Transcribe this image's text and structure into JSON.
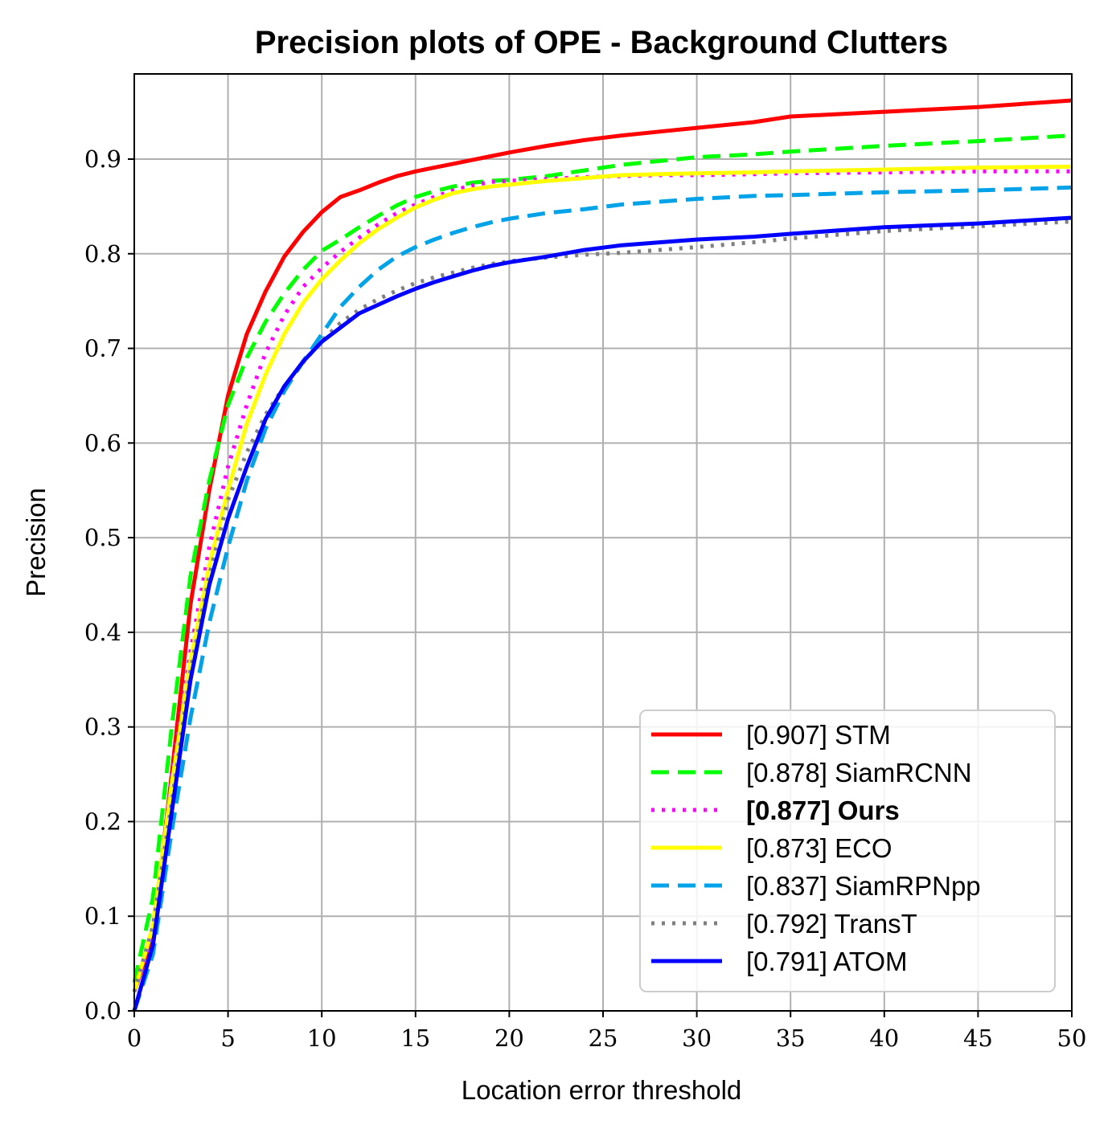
{
  "chart_data": {
    "type": "line",
    "title": "Precision plots of OPE - Background Clutters",
    "xlabel": "Location error threshold",
    "ylabel": "Precision",
    "xlim": [
      0,
      50
    ],
    "ylim": [
      0,
      0.99
    ],
    "xticks": [
      0,
      5,
      10,
      15,
      20,
      25,
      30,
      35,
      40,
      45,
      50
    ],
    "yticks": [
      0.0,
      0.1,
      0.2,
      0.3,
      0.4,
      0.5,
      0.6,
      0.7,
      0.8,
      0.9
    ],
    "grid": true,
    "legend_position": "bottom-right",
    "x": [
      0,
      1,
      2,
      3,
      4,
      5,
      6,
      7,
      8,
      9,
      10,
      11,
      12,
      13,
      14,
      15,
      16,
      17,
      18,
      19,
      20,
      22,
      24,
      26,
      28,
      30,
      33,
      35,
      40,
      45,
      50
    ],
    "series": [
      {
        "name": "[0.907] STM",
        "color": "#ff0000",
        "style": "solid",
        "bold": false,
        "values": [
          0.02,
          0.08,
          0.25,
          0.43,
          0.55,
          0.65,
          0.715,
          0.76,
          0.797,
          0.823,
          0.844,
          0.86,
          0.867,
          0.875,
          0.882,
          0.887,
          0.891,
          0.895,
          0.899,
          0.903,
          0.907,
          0.914,
          0.92,
          0.925,
          0.929,
          0.933,
          0.939,
          0.945,
          0.95,
          0.955,
          0.962
        ]
      },
      {
        "name": "[0.878] SiamRCNN",
        "color": "#00ff00",
        "style": "dashed",
        "bold": false,
        "values": [
          0.03,
          0.12,
          0.3,
          0.46,
          0.56,
          0.64,
          0.69,
          0.728,
          0.758,
          0.783,
          0.803,
          0.815,
          0.828,
          0.84,
          0.851,
          0.86,
          0.866,
          0.871,
          0.875,
          0.877,
          0.878,
          0.882,
          0.888,
          0.894,
          0.898,
          0.902,
          0.905,
          0.908,
          0.914,
          0.919,
          0.925
        ]
      },
      {
        "name": "[0.877] Ours",
        "color": "#ff00ff",
        "style": "dotted",
        "bold": true,
        "values": [
          0.02,
          0.08,
          0.25,
          0.38,
          0.49,
          0.575,
          0.64,
          0.695,
          0.735,
          0.765,
          0.785,
          0.802,
          0.817,
          0.831,
          0.843,
          0.852,
          0.86,
          0.867,
          0.872,
          0.876,
          0.877,
          0.879,
          0.881,
          0.882,
          0.883,
          0.883,
          0.884,
          0.885,
          0.886,
          0.887,
          0.887
        ]
      },
      {
        "name": "[0.873] ECO",
        "color": "#ffff00",
        "style": "solid",
        "bold": false,
        "values": [
          0.02,
          0.09,
          0.24,
          0.37,
          0.47,
          0.55,
          0.62,
          0.672,
          0.715,
          0.748,
          0.773,
          0.793,
          0.811,
          0.826,
          0.838,
          0.849,
          0.857,
          0.864,
          0.868,
          0.871,
          0.873,
          0.877,
          0.88,
          0.883,
          0.884,
          0.885,
          0.886,
          0.887,
          0.889,
          0.891,
          0.892
        ]
      },
      {
        "name": "[0.837] SiamRPNpp",
        "color": "#00a2e8",
        "style": "dashed",
        "bold": false,
        "values": [
          0.0,
          0.06,
          0.19,
          0.31,
          0.41,
          0.49,
          0.56,
          0.615,
          0.655,
          0.686,
          0.715,
          0.744,
          0.765,
          0.783,
          0.797,
          0.807,
          0.815,
          0.822,
          0.828,
          0.833,
          0.837,
          0.843,
          0.847,
          0.852,
          0.855,
          0.858,
          0.861,
          0.862,
          0.865,
          0.867,
          0.87
        ]
      },
      {
        "name": "[0.792] TransT",
        "color": "#808080",
        "style": "dotted",
        "bold": false,
        "values": [
          0.02,
          0.09,
          0.22,
          0.36,
          0.46,
          0.54,
          0.59,
          0.63,
          0.66,
          0.685,
          0.708,
          0.727,
          0.741,
          0.752,
          0.761,
          0.769,
          0.775,
          0.78,
          0.785,
          0.789,
          0.792,
          0.796,
          0.799,
          0.801,
          0.804,
          0.807,
          0.812,
          0.816,
          0.824,
          0.829,
          0.834
        ]
      },
      {
        "name": "[0.791] ATOM",
        "color": "#0000ff",
        "style": "solid",
        "bold": false,
        "values": [
          0.0,
          0.07,
          0.21,
          0.35,
          0.45,
          0.52,
          0.575,
          0.625,
          0.66,
          0.686,
          0.707,
          0.722,
          0.737,
          0.746,
          0.755,
          0.763,
          0.77,
          0.776,
          0.782,
          0.787,
          0.791,
          0.797,
          0.804,
          0.809,
          0.812,
          0.815,
          0.818,
          0.821,
          0.828,
          0.832,
          0.838
        ]
      }
    ]
  }
}
